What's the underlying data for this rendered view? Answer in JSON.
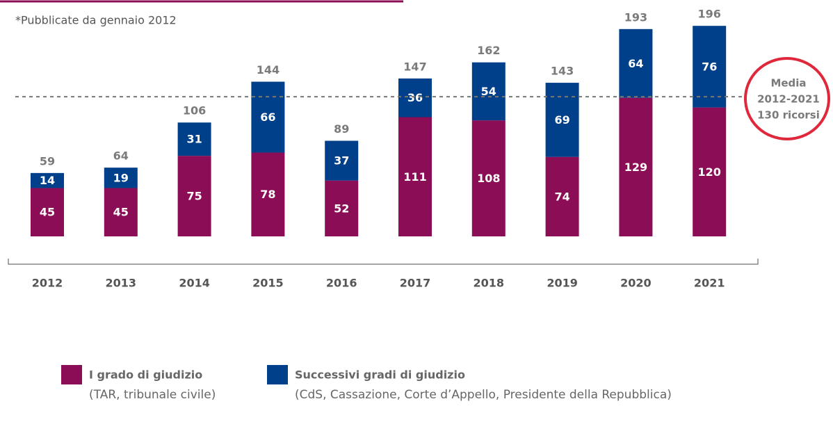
{
  "chart_data": {
    "type": "stacked_bar",
    "subtitle": "*Pubblicate da gennaio 2012",
    "categories": [
      "2012",
      "2013",
      "2014",
      "2015",
      "2016",
      "2017",
      "2018",
      "2019",
      "2020",
      "2021"
    ],
    "series": [
      {
        "name": "I grado di giudizio",
        "description": "(TAR, tribunale civile)",
        "color": "#8b0d55",
        "values": [
          45,
          45,
          75,
          78,
          52,
          111,
          108,
          74,
          129,
          120
        ]
      },
      {
        "name": "Successivi gradi di giudizio",
        "description": "(CdS, Cassazione, Corte d’Appello, Presidente della Repubblica)",
        "color": "#003f8a",
        "values": [
          14,
          19,
          31,
          66,
          37,
          36,
          54,
          69,
          64,
          76
        ]
      }
    ],
    "totals": [
      59,
      64,
      106,
      144,
      89,
      147,
      162,
      143,
      193,
      196
    ],
    "average_line": {
      "value": 130,
      "label_lines": [
        "Media",
        "2012-2021",
        "130 ricorsi"
      ]
    },
    "ylim": [
      0,
      200
    ]
  }
}
